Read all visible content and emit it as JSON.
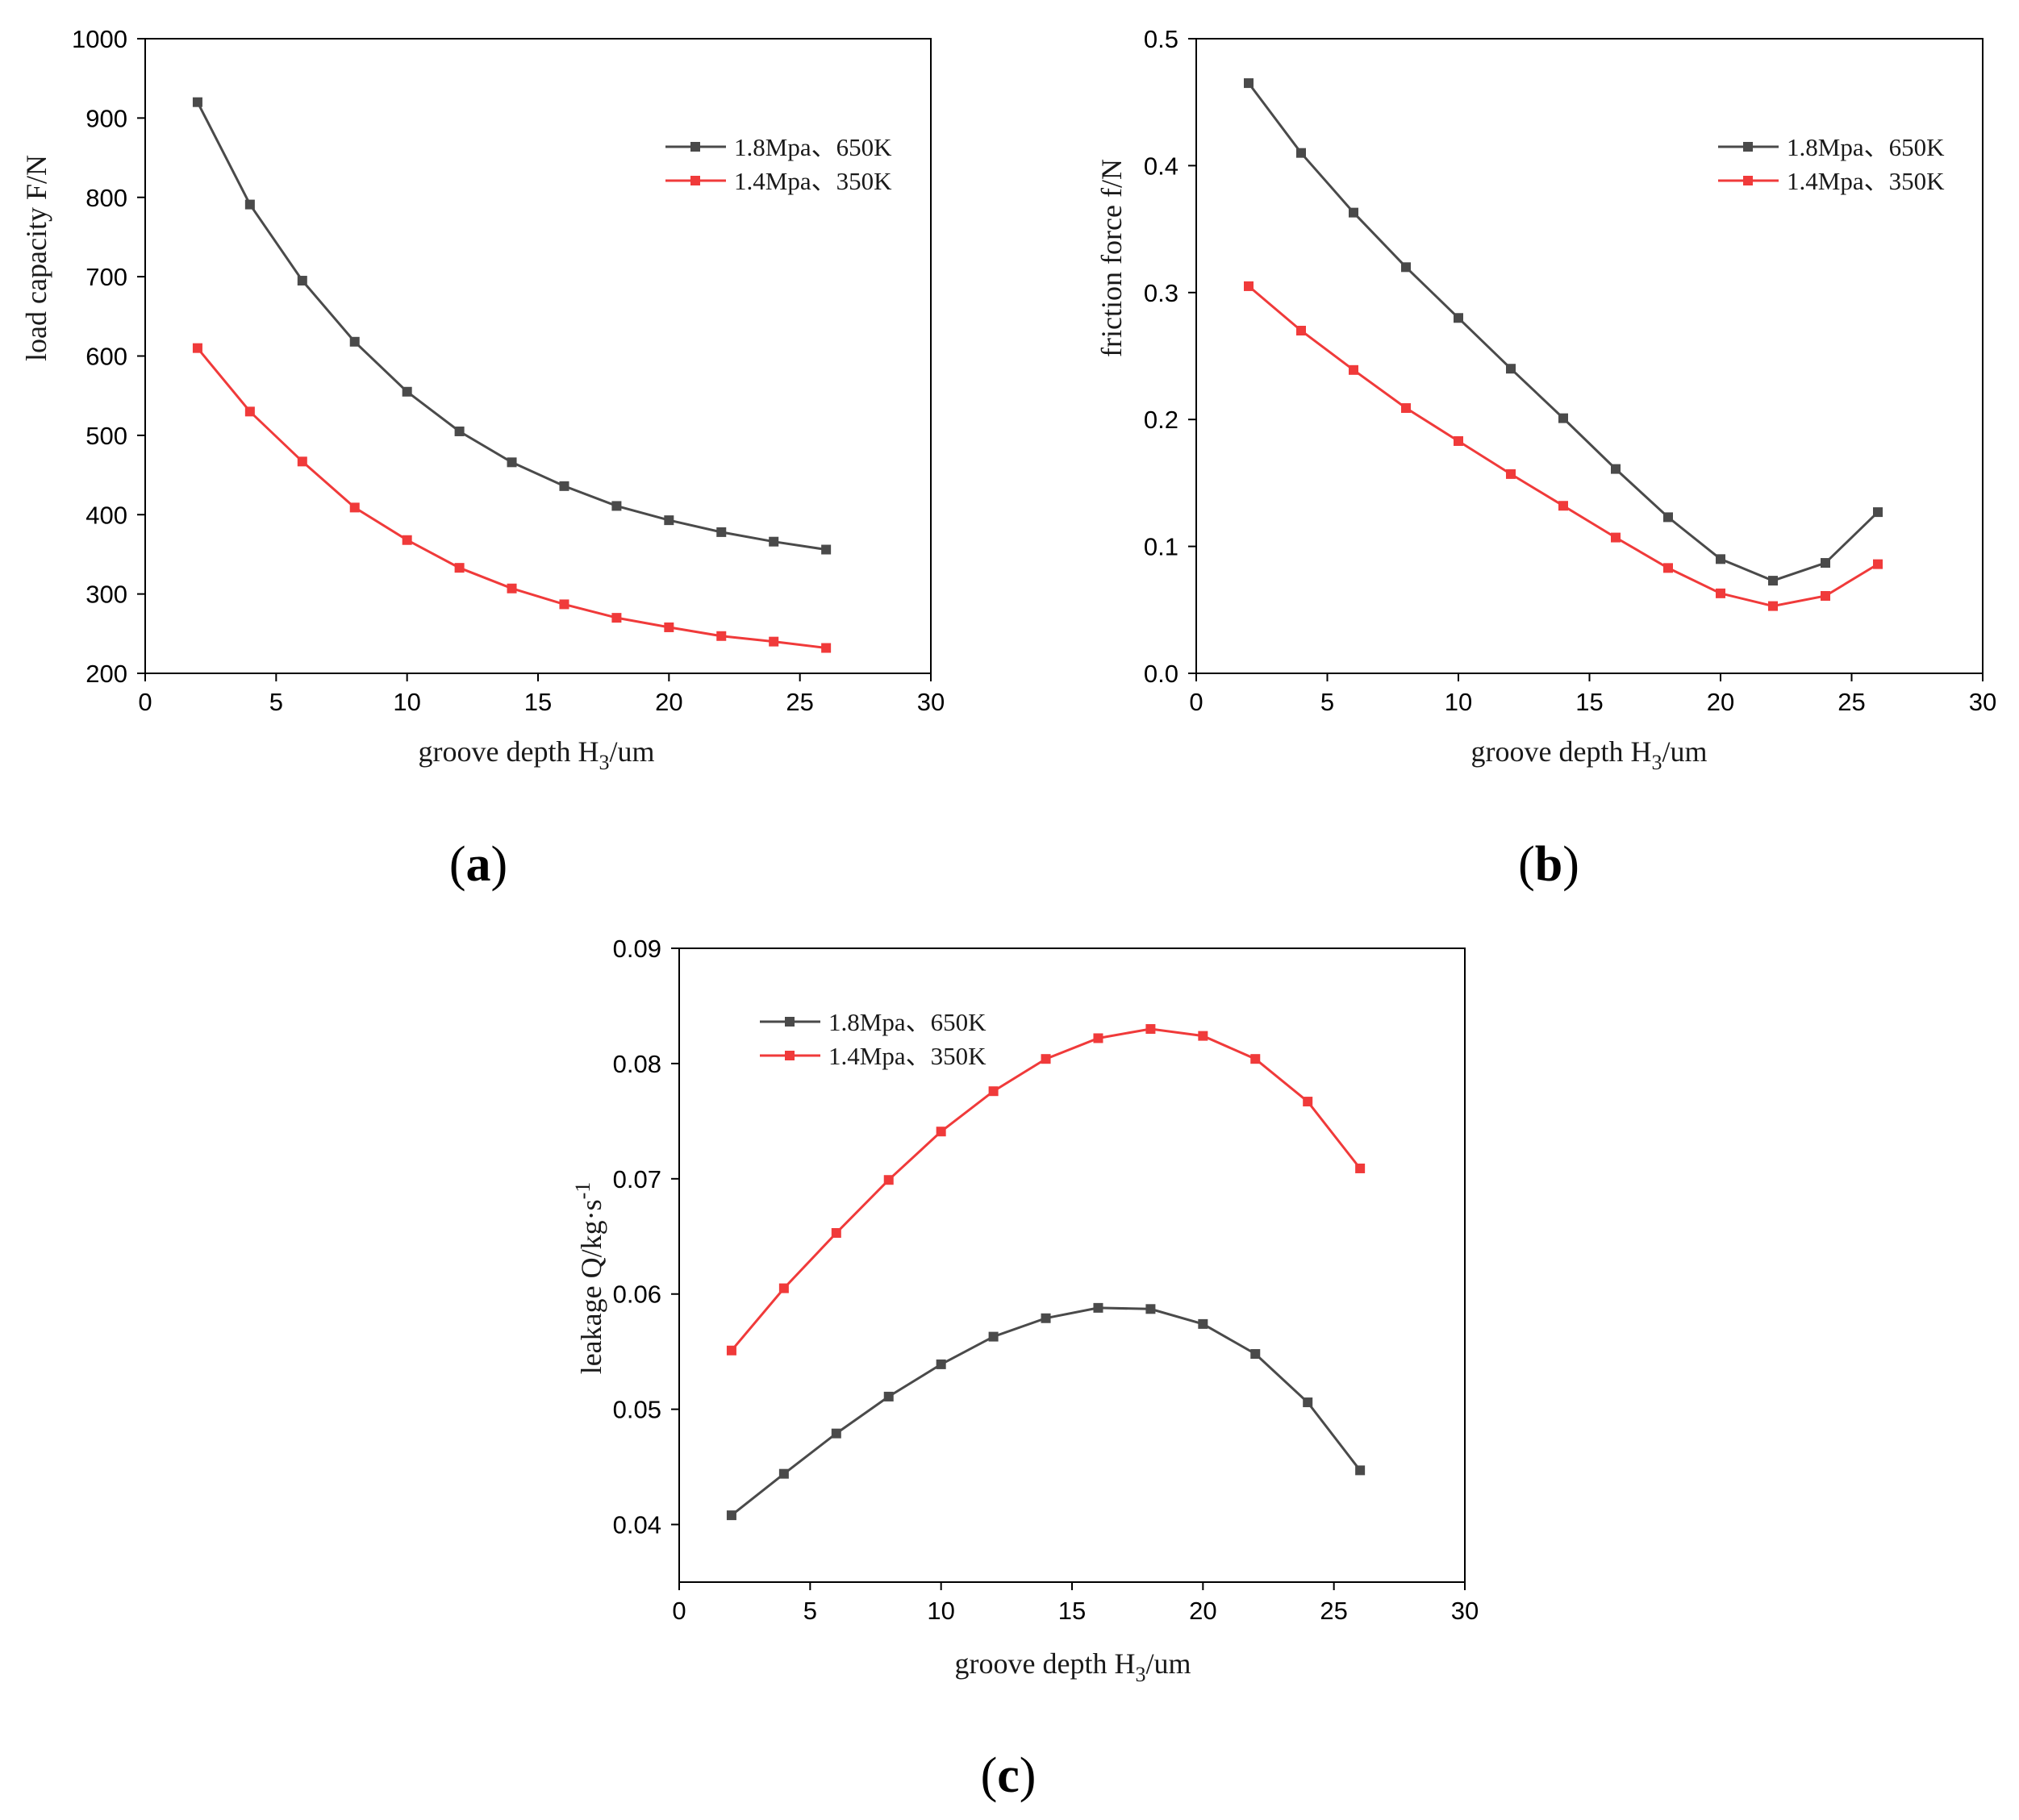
{
  "figure": {
    "panels": [
      "(a)",
      "(b)",
      "(c)"
    ]
  },
  "colors": {
    "series_dark": "#4a4a4a",
    "series_red": "#f03a3a",
    "axis": "#000000"
  },
  "chart_data": [
    {
      "id": "a",
      "type": "line",
      "panel_label": "a",
      "title": "",
      "xlabel_main": "groove depth H",
      "xlabel_sub": "3",
      "xlabel_tail": "/um",
      "ylabel": "load capacity F/N",
      "xlim": [
        0,
        30
      ],
      "ylim": [
        200,
        1000
      ],
      "xticks": [
        0,
        5,
        10,
        15,
        20,
        25,
        30
      ],
      "yticks": [
        200,
        300,
        400,
        500,
        600,
        700,
        800,
        900,
        1000
      ],
      "ytick_labels": [
        "200",
        "300",
        "400",
        "500",
        "600",
        "700",
        "800",
        "900",
        "1000"
      ],
      "legend_position": "top-right",
      "x": [
        2,
        4,
        6,
        8,
        10,
        12,
        14,
        16,
        18,
        20,
        22,
        24,
        26
      ],
      "series": [
        {
          "name": "1.8Mpa、650K",
          "color": "#4a4a4a",
          "values": [
            920,
            791,
            695,
            618,
            555,
            505,
            466,
            436,
            411,
            393,
            378,
            366,
            356
          ]
        },
        {
          "name": "1.4Mpa、350K",
          "color": "#f03a3a",
          "values": [
            610,
            530,
            467,
            409,
            368,
            333,
            307,
            287,
            270,
            258,
            247,
            240,
            232
          ]
        }
      ]
    },
    {
      "id": "b",
      "type": "line",
      "panel_label": "b",
      "title": "",
      "xlabel_main": "groove depth H",
      "xlabel_sub": "3",
      "xlabel_tail": "/um",
      "ylabel": "friction force f/N",
      "xlim": [
        0,
        30
      ],
      "ylim": [
        0,
        0.5
      ],
      "xticks": [
        0,
        5,
        10,
        15,
        20,
        25,
        30
      ],
      "yticks": [
        0,
        0.1,
        0.2,
        0.3,
        0.4,
        0.5
      ],
      "ytick_labels": [
        "0.0",
        "0.1",
        "0.2",
        "0.3",
        "0.4",
        "0.5"
      ],
      "legend_position": "top-right",
      "x": [
        2,
        4,
        6,
        8,
        10,
        12,
        14,
        16,
        18,
        20,
        22,
        24,
        26
      ],
      "series": [
        {
          "name": "1.8Mpa、650K",
          "color": "#4a4a4a",
          "values": [
            0.465,
            0.41,
            0.363,
            0.32,
            0.28,
            0.24,
            0.201,
            0.161,
            0.123,
            0.09,
            0.073,
            0.087,
            0.127
          ]
        },
        {
          "name": "1.4Mpa、350K",
          "color": "#f03a3a",
          "values": [
            0.305,
            0.27,
            0.239,
            0.209,
            0.183,
            0.157,
            0.132,
            0.107,
            0.083,
            0.063,
            0.053,
            0.061,
            0.086
          ]
        }
      ]
    },
    {
      "id": "c",
      "type": "line",
      "panel_label": "c",
      "title": "",
      "xlabel_main": "groove depth H",
      "xlabel_sub": "3",
      "xlabel_tail": "/um",
      "ylabel": "leakage Q/kg·s",
      "ylabel_sup": "-1",
      "xlim": [
        0,
        30
      ],
      "ylim": [
        0.035,
        0.09
      ],
      "xticks": [
        0,
        5,
        10,
        15,
        20,
        25,
        30
      ],
      "yticks": [
        0.04,
        0.05,
        0.06,
        0.07,
        0.08,
        0.09
      ],
      "ytick_labels": [
        "0.04",
        "0.05",
        "0.06",
        "0.07",
        "0.08",
        "0.09"
      ],
      "legend_position": "top-left",
      "x": [
        2,
        4,
        6,
        8,
        10,
        12,
        14,
        16,
        18,
        20,
        22,
        24,
        26
      ],
      "series": [
        {
          "name": "1.8Mpa、650K",
          "color": "#4a4a4a",
          "values": [
            0.0408,
            0.0444,
            0.0479,
            0.0511,
            0.0539,
            0.0563,
            0.0579,
            0.0588,
            0.0587,
            0.0574,
            0.0548,
            0.0506,
            0.0447
          ]
        },
        {
          "name": "1.4Mpa、350K",
          "color": "#f03a3a",
          "values": [
            0.0551,
            0.0605,
            0.0653,
            0.0699,
            0.0741,
            0.0776,
            0.0804,
            0.0822,
            0.083,
            0.0824,
            0.0804,
            0.0767,
            0.0709
          ]
        }
      ]
    }
  ]
}
